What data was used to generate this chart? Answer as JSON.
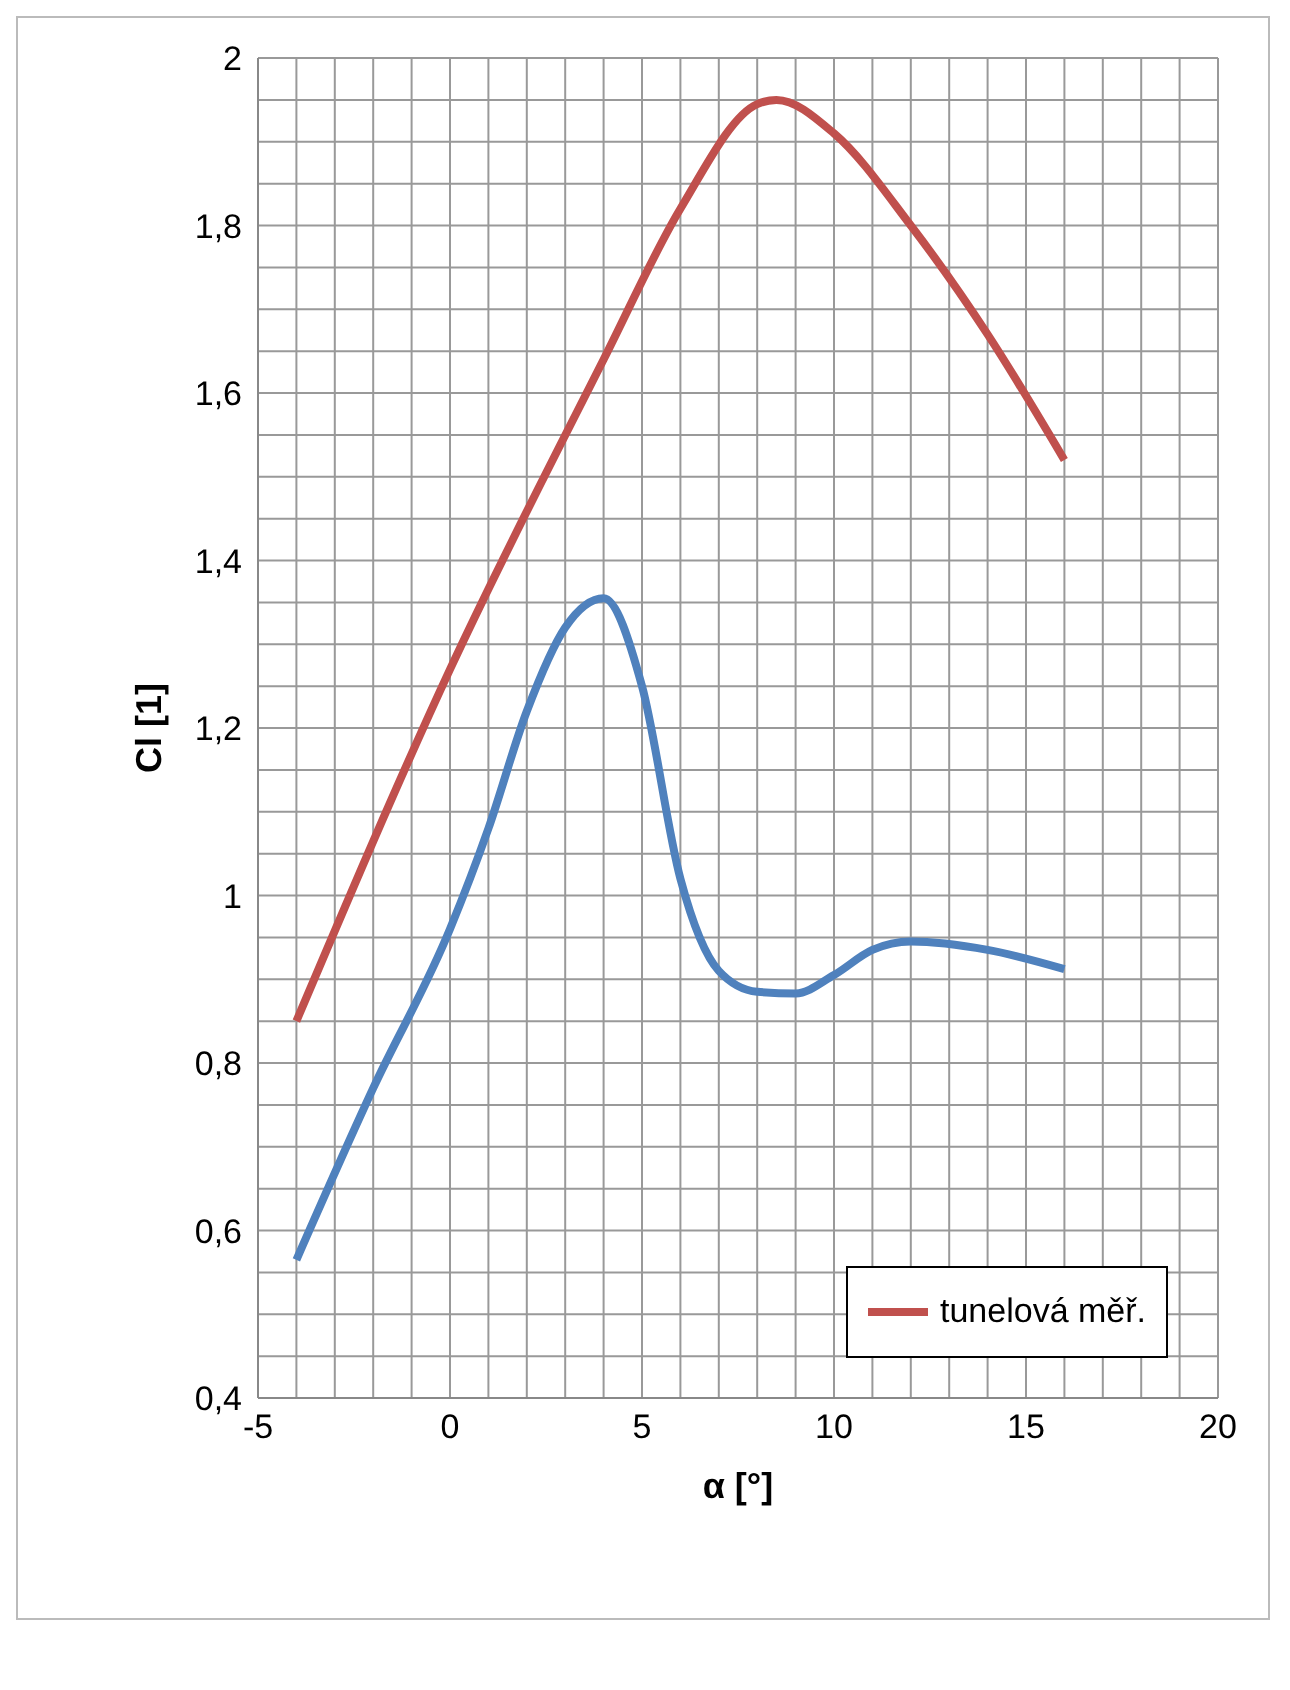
{
  "chart_data": {
    "type": "line",
    "xlabel": "α [°]",
    "ylabel": "Cl [1]",
    "xlim": [
      -5,
      20
    ],
    "xticks": [
      -5,
      0,
      5,
      10,
      15,
      20
    ],
    "ylim": [
      0.4,
      2
    ],
    "yticks": [
      {
        "value": 0.4,
        "label": "0,4"
      },
      {
        "value": 0.6,
        "label": "0,6"
      },
      {
        "value": 0.8,
        "label": "0,8"
      },
      {
        "value": 1,
        "label": "1"
      },
      {
        "value": 1.2,
        "label": "1,2"
      },
      {
        "value": 1.4,
        "label": "1,4"
      },
      {
        "value": 1.6,
        "label": "1,6"
      },
      {
        "value": 1.8,
        "label": "1,8"
      },
      {
        "value": 2,
        "label": "2"
      }
    ],
    "grid": true,
    "legend": "bottom right",
    "marker": "none",
    "line_style": "solid",
    "series": [
      {
        "color": "#4f81bd",
        "x": [
          -4,
          -2,
          0,
          1,
          2,
          3,
          4,
          5,
          6,
          7,
          8,
          9,
          10,
          11,
          12,
          14,
          16
        ],
        "values": [
          0.565,
          0.77,
          0.96,
          1.08,
          1.22,
          1.32,
          1.355,
          1.25,
          1.02,
          0.91,
          0.885,
          0.883,
          0.905,
          0.935,
          0.945,
          0.935,
          0.912
        ]
      },
      {
        "name": "tunelová měř.",
        "color": "#c0504d",
        "x": [
          -4,
          0,
          4,
          6,
          8,
          8.5,
          10,
          12,
          14,
          16
        ],
        "values": [
          0.85,
          1.27,
          1.64,
          1.82,
          1.945,
          1.95,
          1.91,
          1.8,
          1.67,
          1.52
        ]
      }
    ]
  }
}
